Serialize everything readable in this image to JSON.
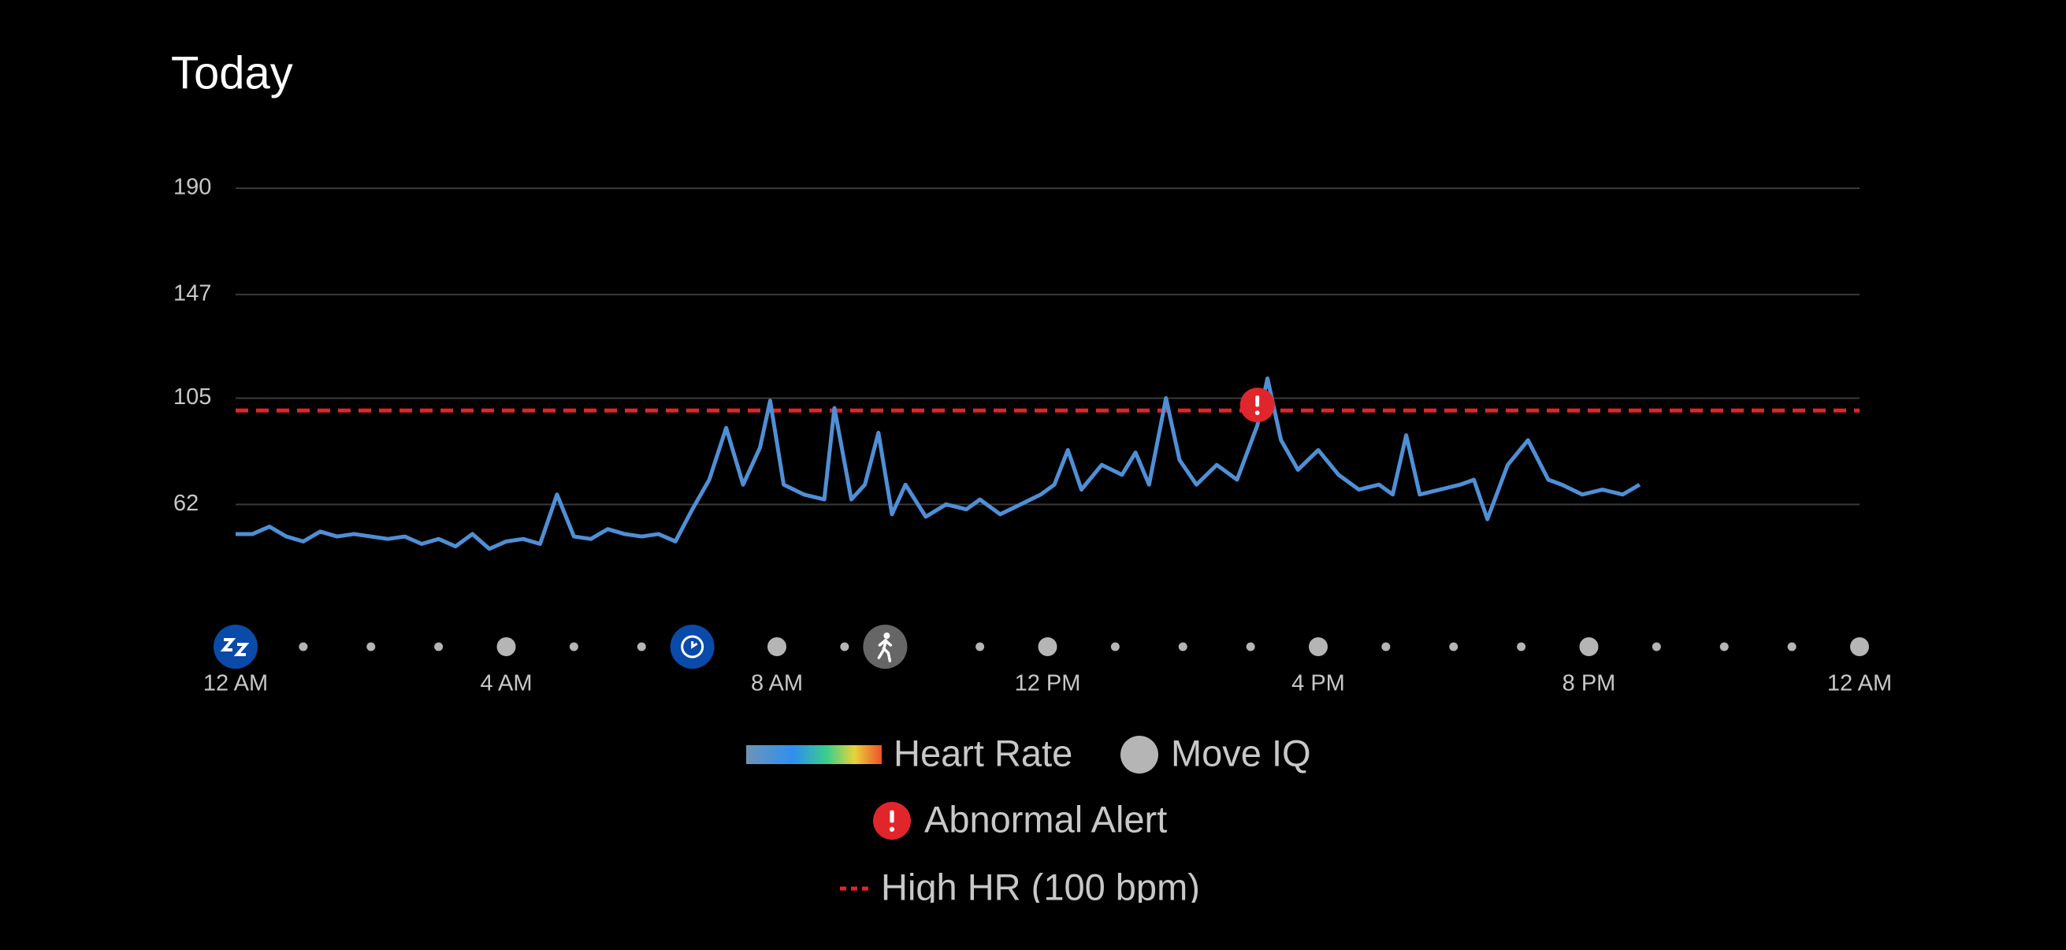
{
  "chart_data": {
    "type": "line",
    "title": "Today",
    "x": [
      0,
      0.25,
      0.5,
      0.75,
      1,
      1.25,
      1.5,
      1.75,
      2,
      2.25,
      2.5,
      2.75,
      3,
      3.25,
      3.5,
      3.75,
      4,
      4.25,
      4.5,
      4.75,
      5,
      5.25,
      5.5,
      5.75,
      6,
      6.25,
      6.5,
      6.75,
      7,
      7.25,
      7.5,
      7.75,
      7.9,
      8.1,
      8.4,
      8.7,
      8.85,
      9.1,
      9.3,
      9.5,
      9.7,
      9.9,
      10.2,
      10.5,
      10.8,
      11,
      11.3,
      11.6,
      11.9,
      12.1,
      12.3,
      12.5,
      12.8,
      13.1,
      13.3,
      13.5,
      13.75,
      13.95,
      14.2,
      14.5,
      14.8,
      15.1,
      15.25,
      15.45,
      15.7,
      16,
      16.3,
      16.6,
      16.9,
      17.1,
      17.3,
      17.5,
      17.8,
      18.1,
      18.3,
      18.5,
      18.8,
      19.1,
      19.4,
      19.6,
      19.9,
      20.2,
      20.5,
      20.75
    ],
    "series": [
      {
        "name": "Heart Rate",
        "color": "#4f8fd6",
        "values": [
          50,
          50,
          53,
          49,
          47,
          51,
          49,
          50,
          49,
          48,
          49,
          46,
          48,
          45,
          50,
          44,
          47,
          48,
          46,
          66,
          49,
          48,
          52,
          50,
          49,
          50,
          47,
          60,
          72,
          93,
          70,
          85,
          104,
          70,
          66,
          64,
          101,
          64,
          70,
          91,
          58,
          70,
          57,
          62,
          60,
          64,
          58,
          62,
          66,
          70,
          84,
          68,
          78,
          74,
          83,
          70,
          105,
          80,
          70,
          78,
          72,
          94,
          113,
          88,
          76,
          84,
          74,
          68,
          70,
          66,
          90,
          66,
          68,
          70,
          72,
          56,
          78,
          88,
          72,
          70,
          66,
          68,
          66,
          70
        ]
      }
    ],
    "xlim": [
      0,
      24
    ],
    "xticks": [
      {
        "value": 0,
        "label": "12 AM"
      },
      {
        "value": 4,
        "label": "4 AM"
      },
      {
        "value": 8,
        "label": "8 AM"
      },
      {
        "value": 12,
        "label": "12 PM"
      },
      {
        "value": 16,
        "label": "4 PM"
      },
      {
        "value": 20,
        "label": "8 PM"
      },
      {
        "value": 24,
        "label": "12 AM"
      }
    ],
    "ylim": [
      20,
      190
    ],
    "yticks": [
      190,
      147,
      105,
      62
    ],
    "grid": true,
    "threshold": 100,
    "threshold_color": "#e0262b",
    "move_iq_x": [
      0,
      6.75,
      9.6
    ],
    "alert_x": [
      15.1
    ],
    "legend": {
      "heart_rate": "Heart Rate",
      "move_iq": "Move IQ",
      "alert": "Abnormal Alert",
      "high_hr": "High HR (100 bpm)"
    }
  }
}
